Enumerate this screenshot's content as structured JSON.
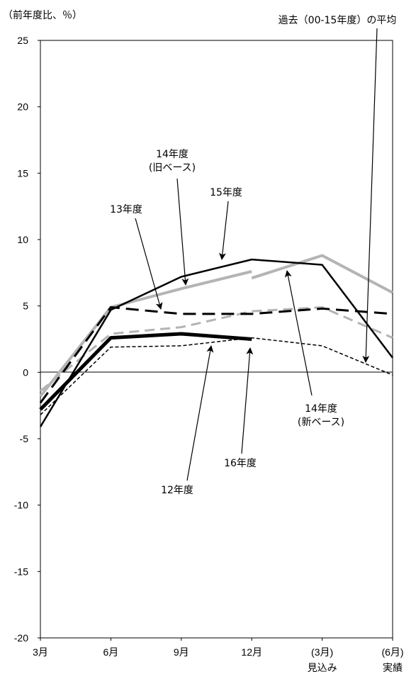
{
  "chart_data": {
    "type": "line",
    "unit_label": "（前年度比、％）",
    "ylim": [
      -20,
      25
    ],
    "y_ticks": [
      "25",
      "20",
      "15",
      "10",
      "5",
      "0",
      "-5",
      "-10",
      "-15",
      "-20"
    ],
    "x_categories": [
      {
        "line1": "3月",
        "line2": ""
      },
      {
        "line1": "6月",
        "line2": ""
      },
      {
        "line1": "9月",
        "line2": ""
      },
      {
        "line1": "12月",
        "line2": ""
      },
      {
        "line1": "(3月)",
        "line2": "見込み"
      },
      {
        "line1": "(6月)",
        "line2": "実績"
      }
    ],
    "grid": false,
    "series": [
      {
        "name": "12年度",
        "color": "#000000",
        "style": "thick",
        "x": [
          0,
          1,
          2,
          3
        ],
        "values": [
          -2.8,
          2.6,
          2.9,
          2.5
        ]
      },
      {
        "name": "13年度",
        "color": "#000000",
        "style": "dashed",
        "x": [
          0,
          1,
          2,
          3,
          4,
          5
        ],
        "values": [
          -2.3,
          4.9,
          4.4,
          4.4,
          4.8,
          4.4
        ]
      },
      {
        "name": "14年度（旧ベース）",
        "color": "#b4b4b4",
        "style": "grey-thick",
        "x": [
          0,
          1,
          2,
          3
        ],
        "values": [
          -1.8,
          4.9,
          6.3,
          7.6
        ]
      },
      {
        "name": "14年度（新ベース）",
        "color": "#b4b4b4",
        "style": "grey-thick",
        "x": [
          3,
          4,
          5
        ],
        "values": [
          7.1,
          8.8,
          6.0
        ]
      },
      {
        "name": "15年度",
        "color": "#000000",
        "style": "solid",
        "x": [
          0,
          1,
          2,
          3,
          4,
          5
        ],
        "values": [
          -4.1,
          4.7,
          7.2,
          8.5,
          8.1,
          1.1
        ]
      },
      {
        "name": "16年度",
        "color": "#b4b4b4",
        "style": "grey-dashed",
        "x": [
          0,
          1,
          2,
          3,
          4,
          5
        ],
        "values": [
          -1.4,
          2.9,
          3.4,
          4.6,
          4.9,
          2.6
        ]
      },
      {
        "name": "過去（00-15年度）の平均",
        "color": "#000000",
        "style": "dotted",
        "x": [
          0,
          1,
          2,
          3,
          4,
          5
        ],
        "values": [
          -3.2,
          1.9,
          2.0,
          2.6,
          2.0,
          -0.2
        ]
      }
    ],
    "annotations": [
      {
        "id": "ann-14old",
        "line1": "14年度",
        "line2": "(旧ベース)"
      },
      {
        "id": "ann-15",
        "line1": "15年度",
        "line2": ""
      },
      {
        "id": "ann-13",
        "line1": "13年度",
        "line2": ""
      },
      {
        "id": "ann-avg",
        "line1": "過去（00-15年度）の平均",
        "line2": ""
      },
      {
        "id": "ann-14new",
        "line1": "14年度",
        "line2": "(新ベース)"
      },
      {
        "id": "ann-16",
        "line1": "16年度",
        "line2": ""
      },
      {
        "id": "ann-12",
        "line1": "12年度",
        "line2": ""
      }
    ]
  }
}
